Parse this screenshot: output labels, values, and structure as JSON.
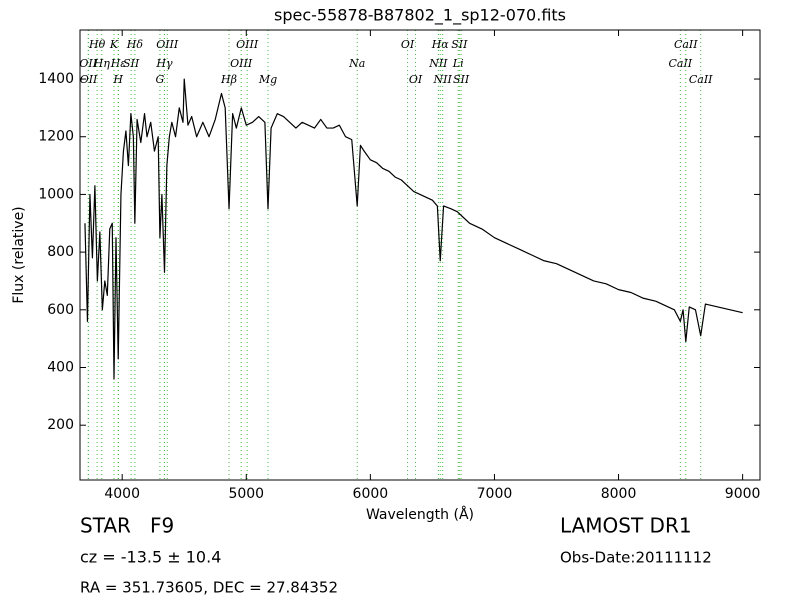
{
  "chart_data": {
    "type": "line",
    "title": "spec-55878-B87802_1_sp12-070.fits",
    "x_label": "Wavelength (Å)",
    "y_label": "Flux (relative)",
    "color": "#000000",
    "xlim": [
      3660,
      9140
    ],
    "ylim": [
      10,
      1570
    ],
    "xticks": [
      4000,
      5000,
      6000,
      7000,
      8000,
      9000
    ],
    "yticks": [
      200,
      400,
      600,
      800,
      1000,
      1200,
      1400
    ],
    "x": [
      3700,
      3720,
      3740,
      3760,
      3780,
      3800,
      3820,
      3840,
      3860,
      3880,
      3900,
      3920,
      3934,
      3950,
      3968,
      3990,
      4010,
      4030,
      4050,
      4070,
      4090,
      4102,
      4120,
      4150,
      4180,
      4200,
      4230,
      4260,
      4290,
      4304,
      4320,
      4341,
      4360,
      4380,
      4400,
      4430,
      4460,
      4490,
      4500,
      4530,
      4560,
      4600,
      4650,
      4700,
      4750,
      4800,
      4830,
      4861,
      4890,
      4920,
      4960,
      5000,
      5050,
      5100,
      5150,
      5175,
      5200,
      5250,
      5300,
      5350,
      5400,
      5450,
      5500,
      5550,
      5600,
      5650,
      5700,
      5750,
      5800,
      5850,
      5894,
      5920,
      5950,
      6000,
      6050,
      6100,
      6150,
      6200,
      6250,
      6300,
      6350,
      6400,
      6450,
      6500,
      6540,
      6563,
      6590,
      6650,
      6700,
      6750,
      6800,
      6900,
      7000,
      7100,
      7200,
      7300,
      7400,
      7500,
      7600,
      7700,
      7800,
      7900,
      8000,
      8100,
      8200,
      8300,
      8400,
      8450,
      8498,
      8520,
      8542,
      8570,
      8620,
      8662,
      8700,
      8800,
      8900,
      9000
    ],
    "values": [
      900,
      560,
      1000,
      780,
      1030,
      700,
      870,
      600,
      700,
      650,
      880,
      900,
      360,
      850,
      430,
      1000,
      1150,
      1220,
      1100,
      1280,
      1200,
      900,
      1260,
      1180,
      1280,
      1200,
      1250,
      1150,
      1200,
      850,
      1000,
      730,
      1100,
      1200,
      1250,
      1200,
      1300,
      1250,
      1400,
      1240,
      1270,
      1200,
      1250,
      1200,
      1260,
      1350,
      1300,
      950,
      1280,
      1230,
      1300,
      1240,
      1250,
      1270,
      1250,
      950,
      1230,
      1280,
      1270,
      1250,
      1230,
      1250,
      1240,
      1230,
      1260,
      1230,
      1230,
      1240,
      1200,
      1190,
      960,
      1170,
      1150,
      1120,
      1110,
      1090,
      1080,
      1060,
      1050,
      1030,
      1010,
      1000,
      990,
      980,
      960,
      770,
      960,
      950,
      940,
      920,
      900,
      880,
      850,
      830,
      810,
      790,
      770,
      760,
      740,
      720,
      700,
      690,
      670,
      660,
      640,
      630,
      610,
      600,
      560,
      600,
      490,
      610,
      600,
      510,
      620,
      610,
      600,
      590
    ],
    "spectral_lines": [
      {
        "label": "OII",
        "x": 3726
      },
      {
        "label": "OII",
        "x": 3729
      },
      {
        "label": "Hθ",
        "x": 3798
      },
      {
        "label": "Hη",
        "x": 3835
      },
      {
        "label": "K",
        "x": 3934
      },
      {
        "label": "Hε",
        "x": 3970
      },
      {
        "label": "H",
        "x": 3968
      },
      {
        "label": "SII",
        "x": 4072
      },
      {
        "label": "Hδ",
        "x": 4102
      },
      {
        "label": "G",
        "x": 4304
      },
      {
        "label": "Hγ",
        "x": 4341
      },
      {
        "label": "OIII",
        "x": 4363
      },
      {
        "label": "Hβ",
        "x": 4861
      },
      {
        "label": "OIII",
        "x": 4959
      },
      {
        "label": "OIII",
        "x": 5007
      },
      {
        "label": "Mg",
        "x": 5175
      },
      {
        "label": "Na",
        "x": 5894
      },
      {
        "label": "OI",
        "x": 6300
      },
      {
        "label": "OI",
        "x": 6364
      },
      {
        "label": "NII",
        "x": 6548
      },
      {
        "label": "Hα",
        "x": 6563
      },
      {
        "label": "NII",
        "x": 6583
      },
      {
        "label": "Li",
        "x": 6708
      },
      {
        "label": "SII",
        "x": 6717
      },
      {
        "label": "SII",
        "x": 6731
      },
      {
        "label": "CaII",
        "x": 8498
      },
      {
        "label": "CaII",
        "x": 8542
      },
      {
        "label": "CaII",
        "x": 8662
      }
    ]
  },
  "footer": {
    "object": "STAR   F9",
    "survey": "LAMOST DR1",
    "redshift": "cz = -13.5 ± 10.4",
    "obs_date": "Obs-Date:20111112",
    "coords": "RA = 351.73605, DEC = 27.84352"
  }
}
